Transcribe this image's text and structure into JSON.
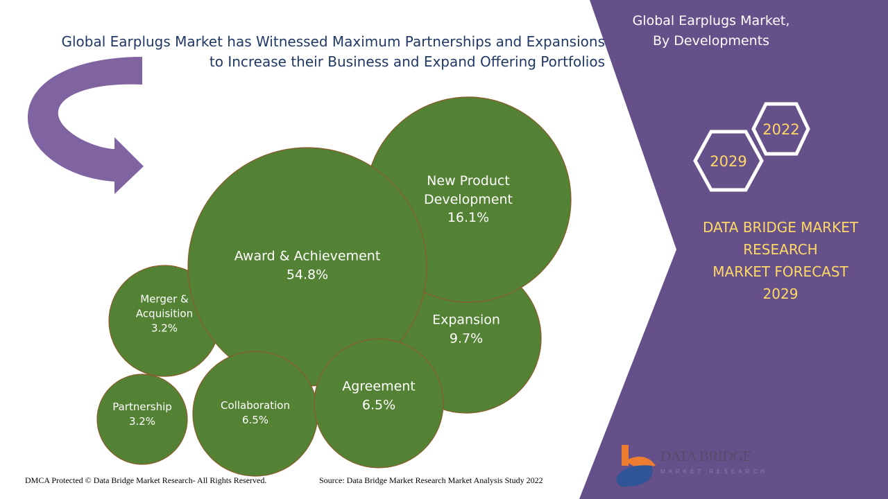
{
  "header": {
    "title_line1": "Global Earplugs Market has Witnessed Maximum Partnerships and Expansions",
    "title_line2": "to Increase their Business and Expand Offering Portfolios"
  },
  "side_panel": {
    "title_line1": "Global Earplugs Market,",
    "title_line2": "By Developments",
    "years": [
      "2022",
      "2029"
    ],
    "brand_lines": [
      "DATA BRIDGE MARKET",
      "RESEARCH",
      "MARKET FORECAST",
      "2029"
    ],
    "logo_text": "DATA BRIDGE",
    "logo_sub": "MARKET RESEARCH"
  },
  "footer": {
    "copyright": "DMCA Protected © Data Bridge Market Research- All Rights Reserved.",
    "source": "Source: Data Bridge Market Research Market Analysis Study 2022"
  },
  "colors": {
    "bubble": "#548235",
    "bubble_border": "#8a5a2a",
    "panel": "#66508a",
    "accent": "#ffd966",
    "title": "#1f3864"
  },
  "chart_data": {
    "type": "bubble",
    "title": "Global Earplugs Market, By Developments",
    "unit": "%",
    "bubbles": [
      {
        "label": "Expansion",
        "value": 9.7,
        "value_label": "9.7%"
      },
      {
        "label": "New Product Development",
        "value": 16.1,
        "value_label": "16.1%"
      },
      {
        "label": "Merger & Acquisition",
        "value": 3.2,
        "value_label": "3.2%"
      },
      {
        "label": "Award & Achievement",
        "value": 54.8,
        "value_label": "54.8%"
      },
      {
        "label": "Partnership",
        "value": 3.2,
        "value_label": "3.2%"
      },
      {
        "label": "Collaboration",
        "value": 6.5,
        "value_label": "6.5%"
      },
      {
        "label": "Agreement",
        "value": 6.5,
        "value_label": "6.5%"
      }
    ]
  }
}
